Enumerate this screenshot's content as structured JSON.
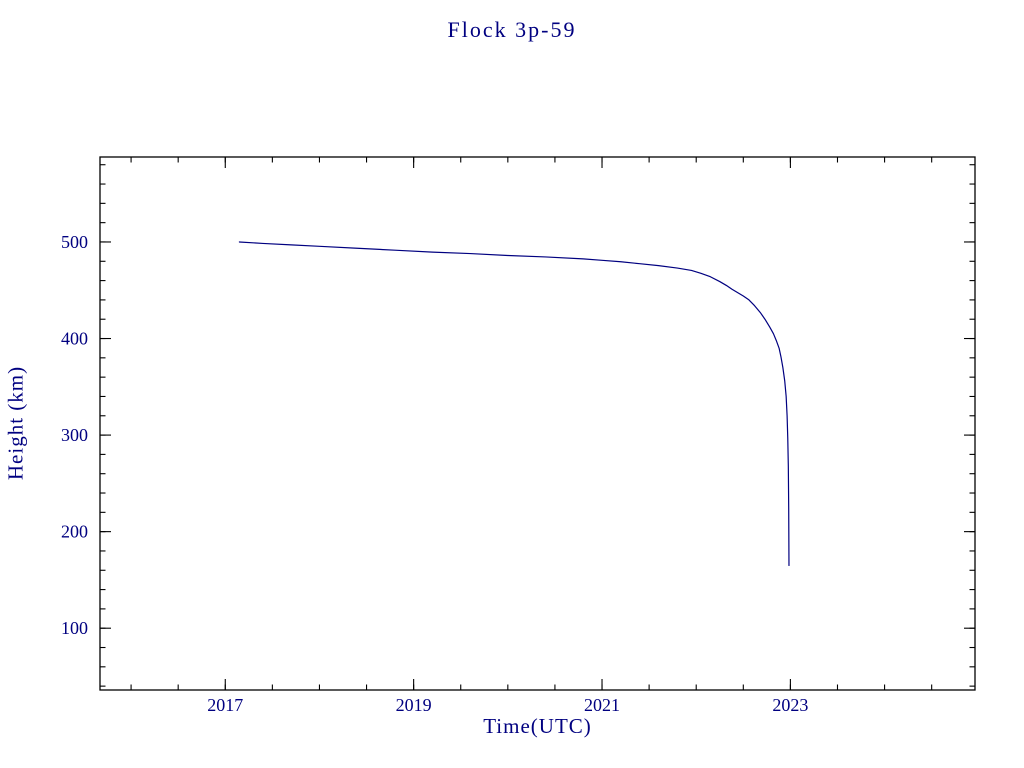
{
  "chart_data": {
    "type": "line",
    "title": "Flock 3p-59",
    "xlabel": "Time(UTC)",
    "ylabel": "Height (km)",
    "xlim": [
      2015.67,
      2024.96
    ],
    "ylim": [
      36,
      588
    ],
    "x_major_ticks": [
      2017,
      2019,
      2021,
      2023
    ],
    "x_tick_labels": [
      "2017",
      "2019",
      "2021",
      "2023"
    ],
    "x_minor_step": 0.5,
    "y_major_ticks": [
      100,
      200,
      300,
      400,
      500
    ],
    "y_tick_labels": [
      "100",
      "200",
      "300",
      "400",
      "500"
    ],
    "y_minor_step": 20,
    "line_color": "#000080",
    "text_color": "#000080",
    "axis_color": "#000000",
    "legend": "none",
    "grid": false,
    "series": [
      {
        "name": "Flock 3p-59 height",
        "x": [
          2017.15,
          2017.4,
          2017.7,
          2018.0,
          2018.4,
          2018.8,
          2019.2,
          2019.6,
          2020.0,
          2020.4,
          2020.8,
          2021.0,
          2021.2,
          2021.4,
          2021.6,
          2021.8,
          2021.95,
          2022.05,
          2022.15,
          2022.25,
          2022.32,
          2022.38,
          2022.44,
          2022.5,
          2022.56,
          2022.62,
          2022.68,
          2022.73,
          2022.78,
          2022.82,
          2022.85,
          2022.88,
          2022.9,
          2022.92,
          2022.94,
          2022.955,
          2022.965,
          2022.972,
          2022.978,
          2022.982,
          2022.985
        ],
        "height": [
          500,
          498.5,
          497,
          495.5,
          493.5,
          491.5,
          489.5,
          488,
          486,
          484.5,
          482.5,
          481,
          479.5,
          477.5,
          475.5,
          473,
          470.5,
          467.5,
          464,
          459,
          455,
          451,
          447.5,
          444,
          440,
          434,
          427,
          420,
          412,
          405,
          398,
          390,
          381,
          370,
          356,
          340,
          320,
          297,
          268,
          225,
          165
        ]
      }
    ]
  }
}
